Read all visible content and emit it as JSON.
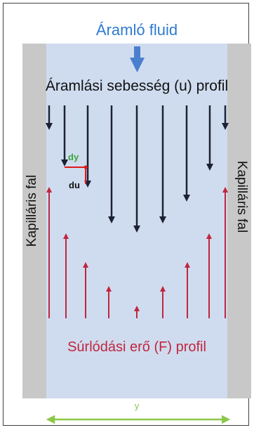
{
  "title_flow": "Áramló fluid",
  "velocity_label": "Áramlási sebesség (u) profil",
  "wall_label_left": "Kapilláris fal",
  "wall_label_right": "Kapilláris fal",
  "dy_label": "dy",
  "du_label": "du",
  "friction_label": "Súrlódási erő (F) profil",
  "y_label": "y",
  "colors": {
    "channel": "#cfdcef",
    "wall": "#c8c8c8",
    "velocity_arrow": "#1c2233",
    "friction_arrow": "#c0263e",
    "flow_arrow": "#4a7fd0",
    "title": "#2e7bd0",
    "dy": "#3aa53a",
    "y_axis": "#8dc74a"
  }
}
